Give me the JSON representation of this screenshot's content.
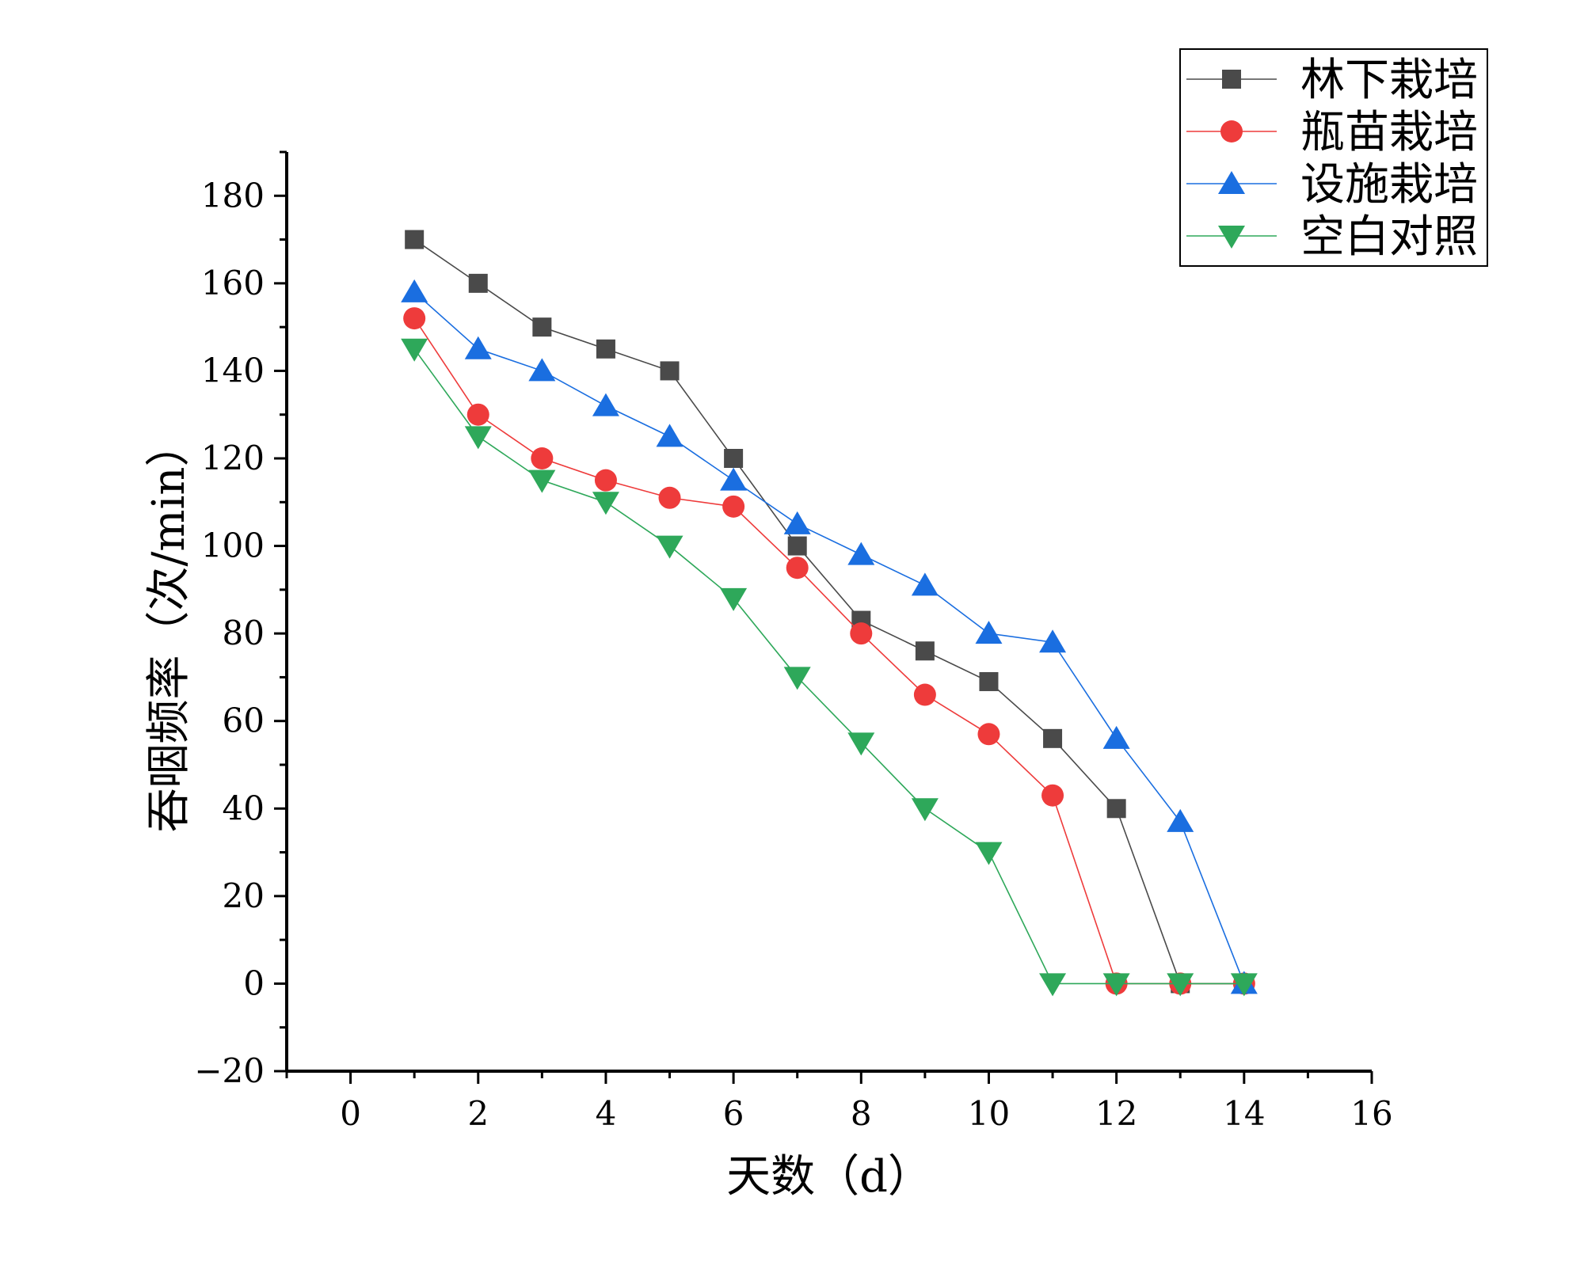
{
  "chart_data": {
    "type": "line",
    "title": "",
    "xlabel": "天数（d）",
    "ylabel": "吞咽频率（次/min）",
    "xlim": [
      -1,
      16
    ],
    "ylim": [
      -20,
      190
    ],
    "xticks": [
      0,
      2,
      4,
      6,
      8,
      10,
      12,
      14,
      16
    ],
    "yticks": [
      -20,
      0,
      20,
      40,
      60,
      80,
      100,
      120,
      140,
      160,
      180
    ],
    "legend_position": "top-right",
    "grid": false,
    "x": [
      1,
      2,
      3,
      4,
      5,
      6,
      7,
      8,
      9,
      10,
      11,
      12,
      13,
      14
    ],
    "series": [
      {
        "name": "林下栽培",
        "marker": "square",
        "color": "#4a4a4a",
        "values": [
          170,
          160,
          150,
          145,
          140,
          120,
          100,
          83,
          76,
          69,
          56,
          40,
          0,
          0
        ]
      },
      {
        "name": "瓶苗栽培",
        "marker": "circle",
        "color": "#ee3b3b",
        "values": [
          152,
          130,
          120,
          115,
          111,
          109,
          95,
          80,
          66,
          57,
          43,
          0,
          0,
          0
        ]
      },
      {
        "name": "设施栽培",
        "marker": "triangle-up",
        "color": "#1a6ee0",
        "values": [
          158,
          145,
          140,
          132,
          125,
          115,
          105,
          98,
          91,
          80,
          78,
          56,
          37,
          0
        ]
      },
      {
        "name": "空白对照",
        "marker": "triangle-down",
        "color": "#2ea85a",
        "values": [
          145,
          125,
          115,
          110,
          100,
          88,
          70,
          55,
          40,
          30,
          0,
          0,
          0,
          0
        ]
      }
    ]
  }
}
